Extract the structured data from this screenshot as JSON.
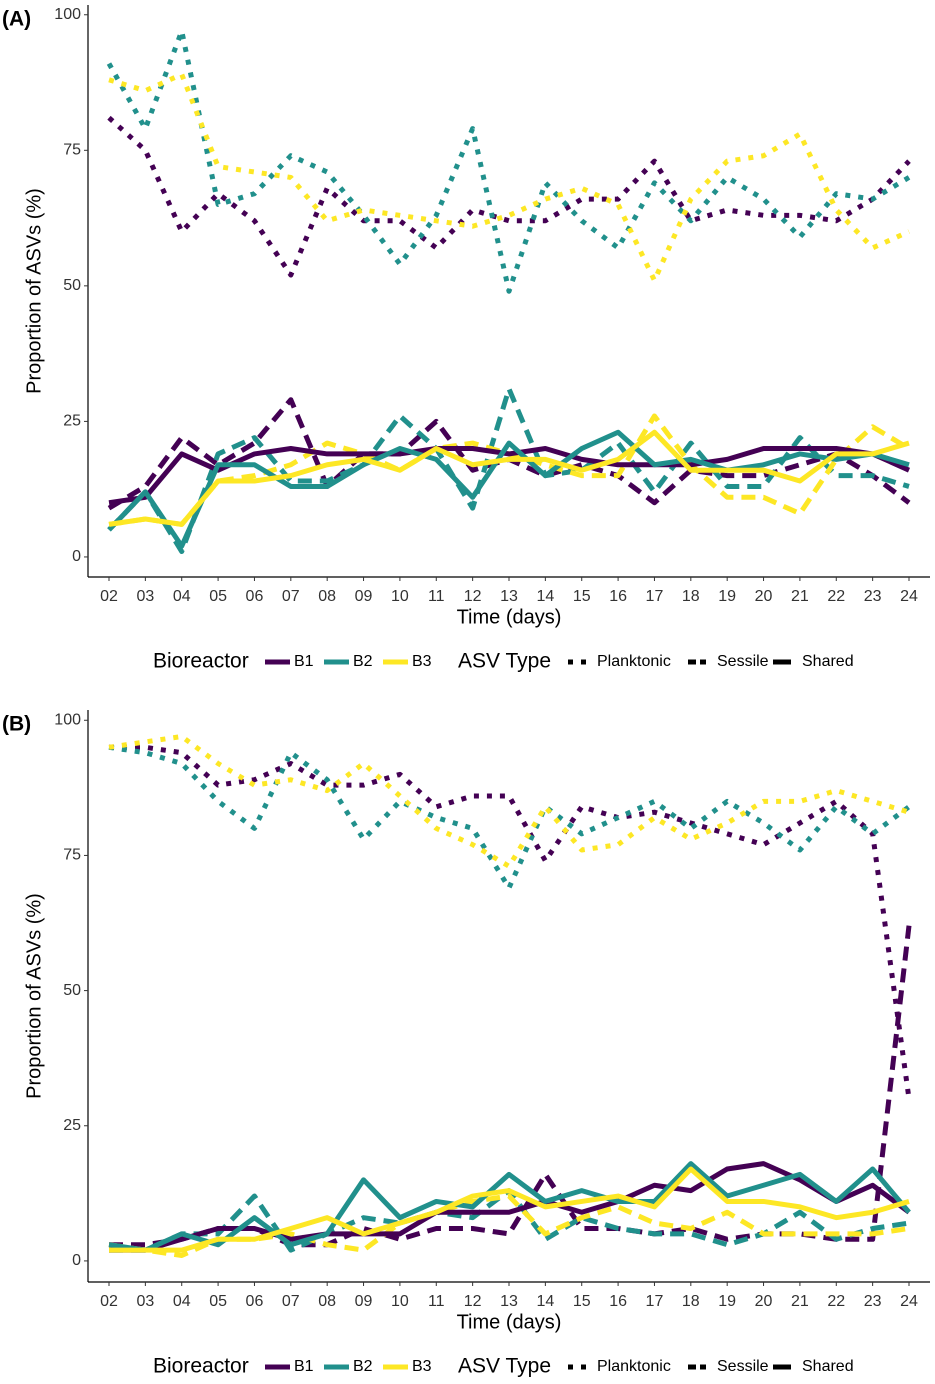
{
  "chart_data": [
    {
      "type": "line",
      "label": "(A)",
      "xlabel": "Time (days)",
      "ylabel": "Proportion of ASVs (%)",
      "categories": [
        "02",
        "03",
        "04",
        "05",
        "06",
        "07",
        "08",
        "09",
        "10",
        "11",
        "12",
        "13",
        "14",
        "15",
        "16",
        "17",
        "18",
        "19",
        "20",
        "21",
        "22",
        "23",
        "24"
      ],
      "ylim": [
        -3.7,
        101.8
      ],
      "yticks": [
        0,
        25,
        50,
        75,
        100
      ],
      "legend": {
        "bioreactor_title": "Bioreactor",
        "bioreactors": [
          {
            "name": "B1",
            "color": "#440154"
          },
          {
            "name": "B2",
            "color": "#21908C"
          },
          {
            "name": "B3",
            "color": "#FDE725"
          }
        ],
        "asv_title": "ASV Type",
        "asv_types": [
          {
            "name": "Planktonic",
            "dash": "dotted"
          },
          {
            "name": "Sessile",
            "dash": "dashed"
          },
          {
            "name": "Shared",
            "dash": "solid"
          }
        ]
      },
      "series": [
        {
          "bioreactor": "B1",
          "asv_type": "Planktonic",
          "values": [
            81,
            75,
            60,
            67,
            62,
            52,
            68,
            62,
            62,
            57,
            64,
            62,
            62,
            66,
            66,
            73,
            62,
            64,
            63,
            63,
            62,
            66,
            73
          ]
        },
        {
          "bioreactor": "B2",
          "asv_type": "Planktonic",
          "values": [
            91,
            79,
            97,
            65,
            67,
            74,
            71,
            63,
            54,
            63,
            79,
            49,
            69,
            62,
            57,
            69,
            62,
            70,
            66,
            59,
            67,
            66,
            70
          ]
        },
        {
          "bioreactor": "B3",
          "asv_type": "Planktonic",
          "values": [
            88,
            86,
            89,
            72,
            71,
            70,
            62,
            64,
            63,
            62,
            61,
            63,
            66,
            68,
            65,
            51,
            66,
            73,
            74,
            78,
            64,
            57,
            60
          ]
        },
        {
          "bioreactor": "B1",
          "asv_type": "Sessile",
          "values": [
            9,
            13,
            22,
            17,
            21,
            29,
            13,
            19,
            19,
            25,
            16,
            18,
            15,
            17,
            15,
            10,
            16,
            15,
            15,
            17,
            19,
            15,
            10
          ]
        },
        {
          "bioreactor": "B2",
          "asv_type": "Sessile",
          "values": [
            5,
            12,
            1,
            19,
            22,
            14,
            14,
            17,
            26,
            20,
            9,
            31,
            15,
            16,
            21,
            12,
            21,
            13,
            13,
            22,
            15,
            15,
            13
          ]
        },
        {
          "bioreactor": "B3",
          "asv_type": "Sessile",
          "values": [
            6,
            7,
            6,
            14,
            15,
            17,
            21,
            19,
            16,
            20,
            21,
            19,
            17,
            15,
            15,
            26,
            17,
            11,
            11,
            8,
            18,
            24,
            20
          ]
        },
        {
          "bioreactor": "B1",
          "asv_type": "Shared",
          "values": [
            10,
            11,
            19,
            16,
            19,
            20,
            19,
            19,
            19,
            20,
            20,
            19,
            20,
            18,
            17,
            17,
            17,
            18,
            20,
            20,
            20,
            19,
            16
          ]
        },
        {
          "bioreactor": "B2",
          "asv_type": "Shared",
          "values": [
            5,
            12,
            2,
            17,
            17,
            13,
            13,
            17,
            20,
            18,
            11,
            21,
            15,
            20,
            23,
            17,
            18,
            16,
            17,
            19,
            18,
            19,
            17
          ]
        },
        {
          "bioreactor": "B3",
          "asv_type": "Shared",
          "values": [
            6,
            7,
            6,
            14,
            14,
            15,
            17,
            18,
            16,
            20,
            17,
            18,
            18,
            16,
            18,
            23,
            16,
            16,
            16,
            14,
            19,
            19,
            21
          ]
        }
      ]
    },
    {
      "type": "line",
      "label": "(B)",
      "xlabel": "Time (days)",
      "ylabel": "Proportion of ASVs (%)",
      "categories": [
        "02",
        "03",
        "04",
        "05",
        "06",
        "07",
        "08",
        "09",
        "10",
        "11",
        "12",
        "13",
        "14",
        "15",
        "16",
        "17",
        "18",
        "19",
        "20",
        "21",
        "22",
        "23",
        "24"
      ],
      "ylim": [
        -3.9,
        101.9
      ],
      "yticks": [
        0,
        25,
        50,
        75,
        100
      ],
      "legend": {
        "bioreactor_title": "Bioreactor",
        "bioreactors": [
          {
            "name": "B1",
            "color": "#440154"
          },
          {
            "name": "B2",
            "color": "#21908C"
          },
          {
            "name": "B3",
            "color": "#FDE725"
          }
        ],
        "asv_title": "ASV Type",
        "asv_types": [
          {
            "name": "Planktonic",
            "dash": "dotted"
          },
          {
            "name": "Sessile",
            "dash": "dashed"
          },
          {
            "name": "Shared",
            "dash": "solid"
          }
        ]
      },
      "series": [
        {
          "bioreactor": "B1",
          "asv_type": "Planktonic",
          "values": [
            95,
            95,
            94,
            88,
            89,
            92,
            88,
            88,
            90,
            84,
            86,
            86,
            74,
            84,
            82,
            83,
            81,
            79,
            77,
            81,
            85,
            79,
            30
          ]
        },
        {
          "bioreactor": "B2",
          "asv_type": "Planktonic",
          "values": [
            95,
            94,
            92,
            85,
            80,
            94,
            89,
            78,
            85,
            82,
            80,
            69,
            84,
            79,
            82,
            85,
            80,
            85,
            81,
            76,
            84,
            79,
            84
          ]
        },
        {
          "bioreactor": "B3",
          "asv_type": "Planktonic",
          "values": [
            95,
            96,
            97,
            92,
            88,
            89,
            87,
            92,
            86,
            80,
            77,
            73,
            84,
            76,
            77,
            82,
            78,
            81,
            85,
            85,
            87,
            85,
            83
          ]
        },
        {
          "bioreactor": "B1",
          "asv_type": "Sessile",
          "values": [
            3,
            3,
            4,
            6,
            6,
            3,
            3,
            6,
            4,
            6,
            6,
            5,
            16,
            6,
            6,
            5,
            6,
            4,
            5,
            5,
            4,
            4,
            62
          ]
        },
        {
          "bioreactor": "B2",
          "asv_type": "Sessile",
          "values": [
            2,
            2,
            5,
            5,
            12,
            2,
            5,
            8,
            7,
            9,
            8,
            13,
            4,
            8,
            6,
            5,
            5,
            3,
            5,
            9,
            4,
            6,
            7
          ]
        },
        {
          "bioreactor": "B3",
          "asv_type": "Sessile",
          "values": [
            3,
            2,
            1,
            4,
            4,
            5,
            3,
            2,
            7,
            9,
            11,
            12,
            5,
            8,
            10,
            7,
            6,
            9,
            5,
            5,
            5,
            5,
            6
          ]
        },
        {
          "bioreactor": "B1",
          "asv_type": "Shared",
          "values": [
            2,
            2,
            4,
            6,
            6,
            4,
            5,
            5,
            5,
            9,
            9,
            9,
            11,
            9,
            11,
            14,
            13,
            17,
            18,
            15,
            11,
            14,
            9
          ]
        },
        {
          "bioreactor": "B2",
          "asv_type": "Shared",
          "values": [
            3,
            2,
            5,
            3,
            8,
            3,
            5,
            15,
            8,
            11,
            10,
            16,
            11,
            13,
            11,
            11,
            18,
            12,
            14,
            16,
            11,
            17,
            9
          ]
        },
        {
          "bioreactor": "B3",
          "asv_type": "Shared",
          "values": [
            2,
            2,
            2,
            4,
            4,
            6,
            8,
            5,
            7,
            9,
            12,
            13,
            10,
            11,
            12,
            10,
            17,
            11,
            11,
            10,
            8,
            9,
            11
          ]
        }
      ]
    }
  ]
}
